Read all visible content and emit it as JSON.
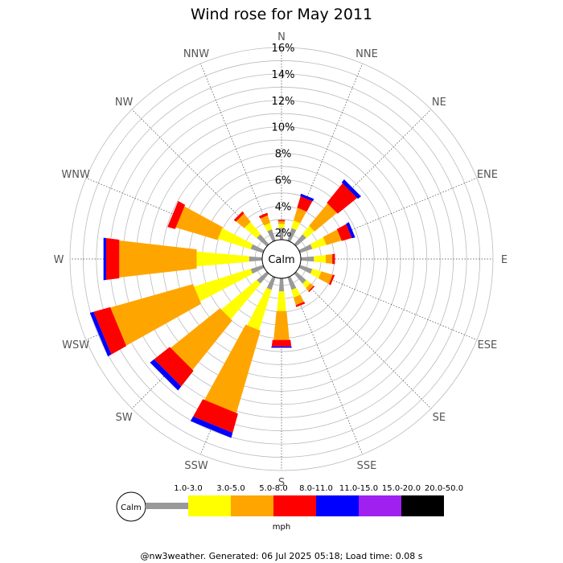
{
  "chart_data": {
    "type": "wind-rose",
    "title": "Wind rose for May 2011",
    "directions": [
      "N",
      "NNE",
      "NE",
      "ENE",
      "E",
      "ESE",
      "SE",
      "SSE",
      "S",
      "SSW",
      "SW",
      "WSW",
      "W",
      "WNW",
      "NW",
      "NNW"
    ],
    "radial_ticks": [
      2,
      4,
      6,
      8,
      10,
      12,
      14,
      16
    ],
    "radial_tick_suffix": "%",
    "rlim": [
      0,
      16
    ],
    "calm_label": "Calm",
    "unit": "mph",
    "bins": [
      {
        "label": "1.0-3.0",
        "color": "#999999"
      },
      {
        "label": "3.0-5.0",
        "color": "#ffff00"
      },
      {
        "label": "5.0-8.0",
        "color": "#ffa500"
      },
      {
        "label": "8.0-11.0",
        "color": "#ff0000"
      },
      {
        "label": "11.0-15.0",
        "color": "#0000ff"
      },
      {
        "label": "15.0-20.0",
        "color": "#a020f0"
      },
      {
        "label": "20.0-50.0",
        "color": "#000000"
      }
    ],
    "series": [
      {
        "direction": "N",
        "values": [
          0.9,
          0.3,
          0.2,
          0.1,
          0,
          0,
          0
        ]
      },
      {
        "direction": "NNE",
        "values": [
          1.0,
          0.6,
          1.0,
          0.9,
          0.2,
          0,
          0
        ]
      },
      {
        "direction": "NE",
        "values": [
          1.0,
          0.8,
          2.2,
          1.9,
          0.3,
          0,
          0
        ]
      },
      {
        "direction": "ENE",
        "values": [
          1.0,
          1.1,
          1.2,
          0.8,
          0.25,
          0,
          0
        ]
      },
      {
        "direction": "E",
        "values": [
          1.0,
          0.9,
          0.5,
          0.2,
          0,
          0,
          0
        ]
      },
      {
        "direction": "ESE",
        "values": [
          1.0,
          0.7,
          0.9,
          0.15,
          0,
          0,
          0
        ]
      },
      {
        "direction": "SE",
        "values": [
          1.0,
          0.4,
          0.3,
          0.1,
          0,
          0,
          0
        ]
      },
      {
        "direction": "SSE",
        "values": [
          1.0,
          0.6,
          0.6,
          0.15,
          0,
          0,
          0
        ]
      },
      {
        "direction": "S",
        "values": [
          1.0,
          1.5,
          2.2,
          0.5,
          0.1,
          0,
          0
        ]
      },
      {
        "direction": "SSW",
        "values": [
          1.0,
          3.2,
          6.5,
          1.5,
          0.4,
          0,
          0
        ]
      },
      {
        "direction": "SW",
        "values": [
          1.0,
          3.5,
          4.8,
          1.5,
          0.4,
          0,
          0
        ]
      },
      {
        "direction": "WSW",
        "values": [
          1.0,
          4.5,
          6.5,
          1.3,
          0.3,
          0,
          0
        ]
      },
      {
        "direction": "W",
        "values": [
          1.0,
          4.0,
          5.9,
          1.0,
          0.2,
          0,
          0
        ]
      },
      {
        "direction": "WNW",
        "values": [
          1.0,
          2.6,
          3.3,
          0.6,
          0,
          0,
          0
        ]
      },
      {
        "direction": "NW",
        "values": [
          1.0,
          1.2,
          0.8,
          0.2,
          0,
          0,
          0
        ]
      },
      {
        "direction": "NNW",
        "values": [
          0.9,
          0.5,
          0.6,
          0.2,
          0,
          0,
          0
        ]
      }
    ],
    "grid": true
  },
  "footer": "@nw3weather. Generated: 06 Jul 2025 05:18; Load time: 0.08 s"
}
